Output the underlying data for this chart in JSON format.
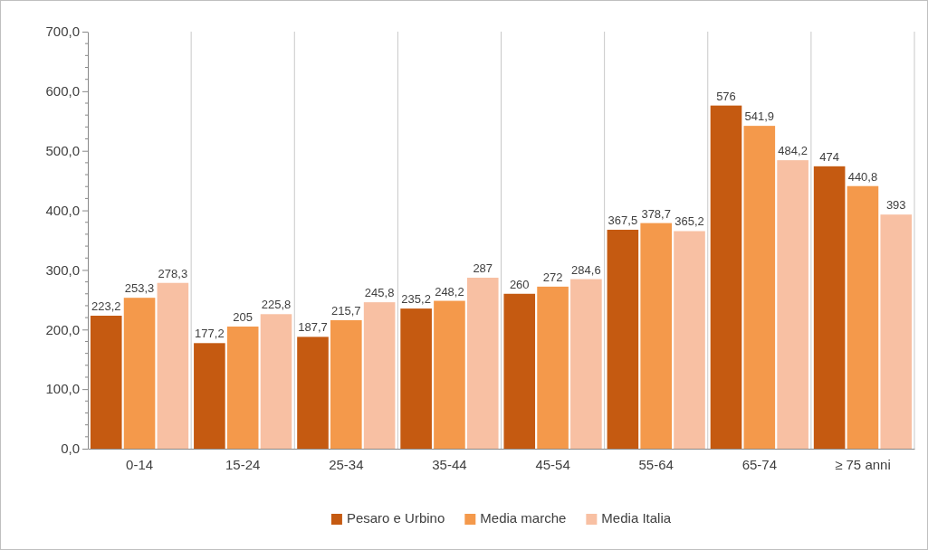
{
  "chart_data": {
    "type": "bar",
    "categories": [
      "0-14",
      "15-24",
      "25-34",
      "35-44",
      "45-54",
      "55-64",
      "65-74",
      "≥ 75 anni"
    ],
    "series": [
      {
        "name": "Pesaro e Urbino",
        "color": "#c55a11",
        "values": [
          223.2,
          177.2,
          187.7,
          235.2,
          260,
          367.5,
          576,
          474
        ],
        "value_labels": [
          "223,2",
          "177,2",
          "187,7",
          "235,2",
          "260",
          "367,5",
          "576",
          "474"
        ]
      },
      {
        "name": "Media marche",
        "color": "#f4994b",
        "values": [
          253.3,
          205,
          215.7,
          248.2,
          272,
          378.7,
          541.9,
          440.8
        ],
        "value_labels": [
          "253,3",
          "205",
          "215,7",
          "248,2",
          "272",
          "378,7",
          "541,9",
          "440,8"
        ]
      },
      {
        "name": "Media Italia",
        "color": "#f8c0a3",
        "values": [
          278.3,
          225.8,
          245.8,
          287,
          284.6,
          365.2,
          484.2,
          393
        ],
        "value_labels": [
          "278,3",
          "225,8",
          "245,8",
          "287",
          "284,6",
          "365,2",
          "484,2",
          "393"
        ]
      }
    ],
    "ylim": [
      0,
      700
    ],
    "yticks": [
      {
        "value": 0,
        "label": "0,0"
      },
      {
        "value": 100,
        "label": "100,0"
      },
      {
        "value": 200,
        "label": "200,0"
      },
      {
        "value": 300,
        "label": "300,0"
      },
      {
        "value": 400,
        "label": "400,0"
      },
      {
        "value": 500,
        "label": "500,0"
      },
      {
        "value": 600,
        "label": "600,0"
      },
      {
        "value": 700,
        "label": "700,0"
      }
    ],
    "grid": "x",
    "legend": "bottom"
  }
}
